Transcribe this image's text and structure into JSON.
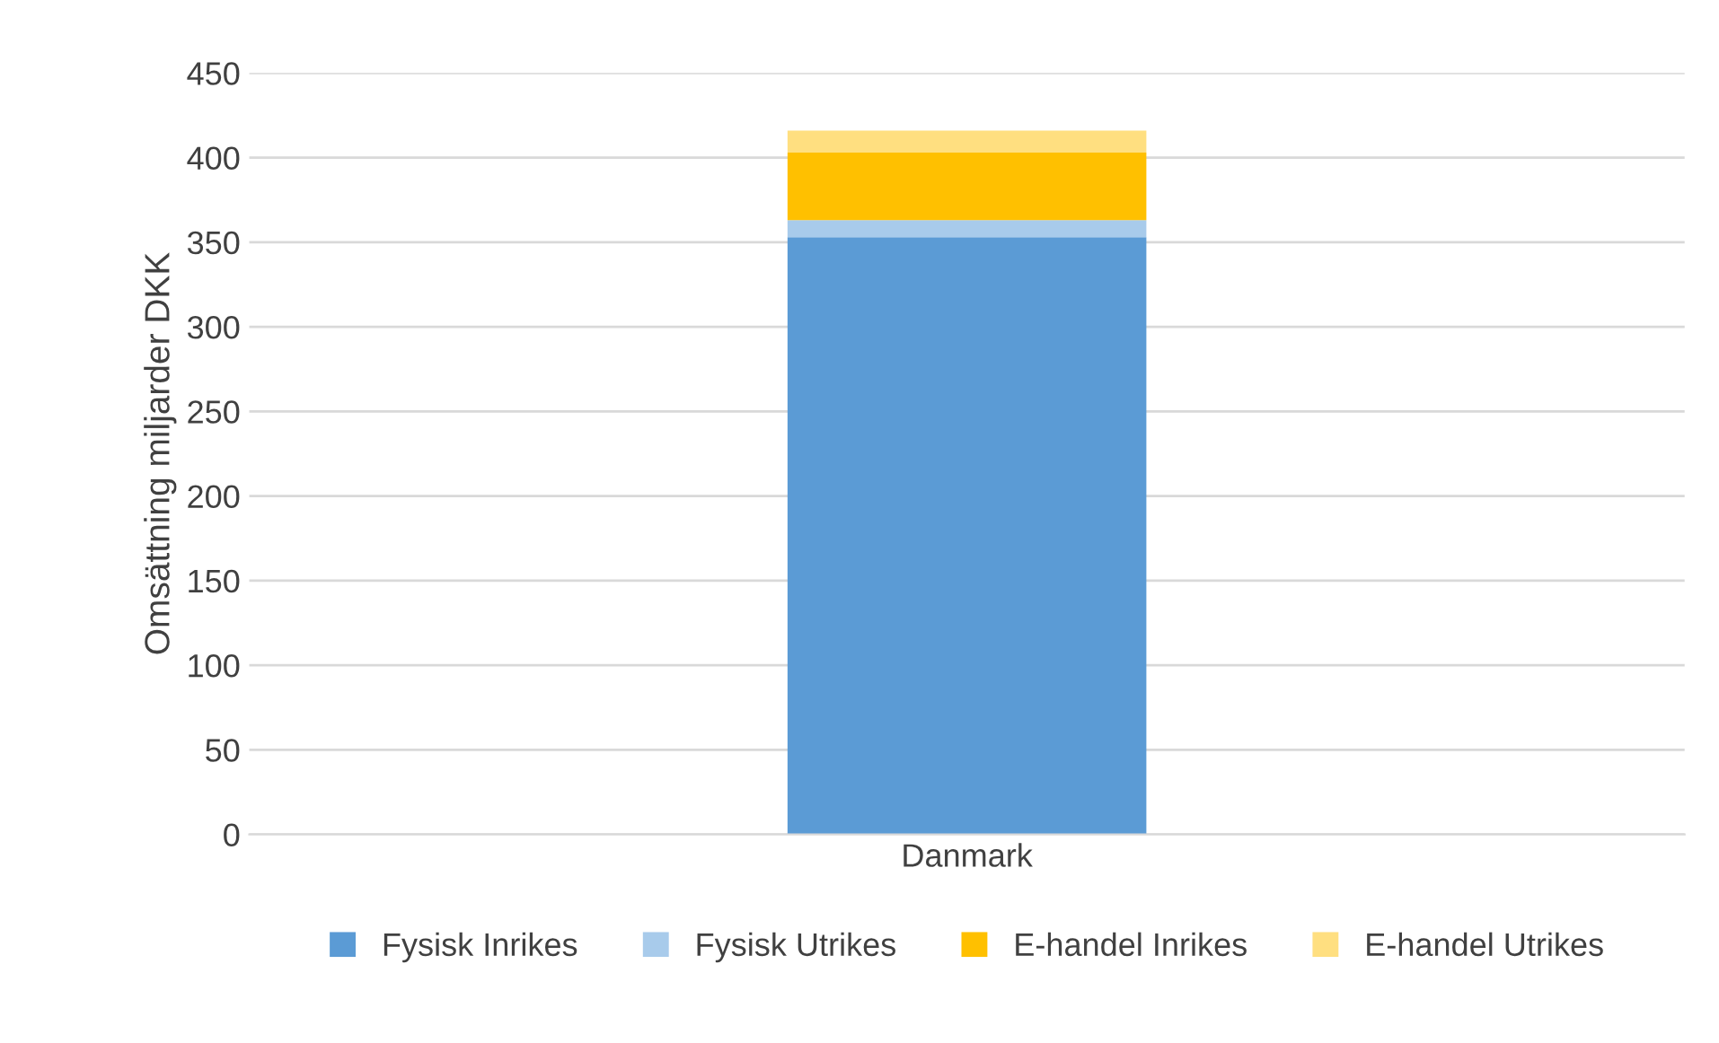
{
  "chart_data": {
    "type": "bar",
    "stacked": true,
    "ylabel": "Omsättning miljarder DKK",
    "categories": [
      "Danmark"
    ],
    "series": [
      {
        "name": "Fysisk Inrikes",
        "color": "#5b9bd5",
        "values": [
          353
        ]
      },
      {
        "name": "Fysisk Utrikes",
        "color": "#a8cbeb",
        "values": [
          10
        ]
      },
      {
        "name": "E-handel Inrikes",
        "color": "#ffc000",
        "values": [
          40
        ]
      },
      {
        "name": "E-handel Utrikes",
        "color": "#ffdf80",
        "values": [
          13
        ]
      }
    ],
    "ylim": [
      0,
      450
    ],
    "yticks": [
      0,
      50,
      100,
      150,
      200,
      250,
      300,
      350,
      400,
      450
    ],
    "grid": "y",
    "legend": "bottom"
  }
}
